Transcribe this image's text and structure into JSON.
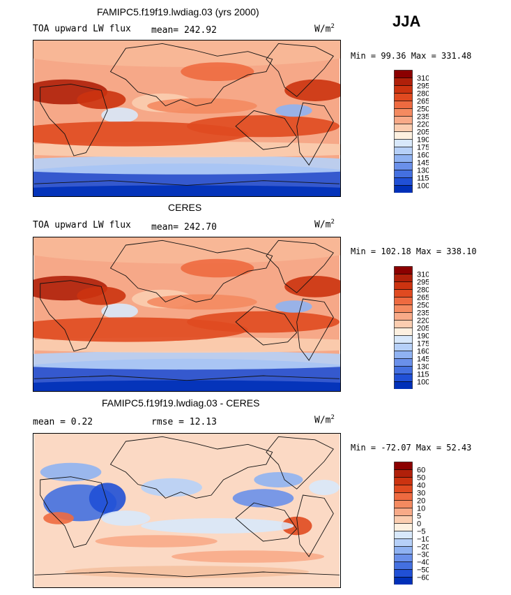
{
  "header": {
    "season": "JJA"
  },
  "panels": [
    {
      "title": "FAMIPC5.f19f19.lwdiag.03 (yrs 2000)",
      "left_label": "TOA upward LW flux",
      "mid_label": "mean= 242.92",
      "units": "W/m",
      "units_sup": "2",
      "minmax": "Min =  99.36 Max = 331.48",
      "scale": "flux"
    },
    {
      "title": "CERES",
      "left_label": "TOA upward LW flux",
      "mid_label": "mean= 242.70",
      "units": "W/m",
      "units_sup": "2",
      "minmax": "Min = 102.18 Max = 338.10",
      "scale": "flux"
    },
    {
      "title": "FAMIPC5.f19f19.lwdiag.03 - CERES",
      "left_label": "mean =   0.22",
      "mid_label": "rmse =  12.13",
      "units": "W/m",
      "units_sup": "2",
      "minmax": "Min = -72.07 Max =  52.43",
      "scale": "diff"
    }
  ],
  "colorbars": {
    "flux": {
      "labels": [
        "310",
        "295",
        "280",
        "265",
        "250",
        "235",
        "220",
        "205",
        "190",
        "175",
        "160",
        "145",
        "130",
        "115",
        "100"
      ],
      "colors": [
        "#8b0000",
        "#b0200a",
        "#cc3310",
        "#e04a20",
        "#ee6a40",
        "#f48a60",
        "#f8aa88",
        "#fbcdb0",
        "#fdf0e0",
        "#d8e8fb",
        "#b6d0f8",
        "#8fb2f2",
        "#6a90ea",
        "#4470e0",
        "#2050d6",
        "#0030b8"
      ]
    },
    "diff": {
      "labels": [
        "60",
        "50",
        "40",
        "30",
        "20",
        "10",
        "5",
        "0",
        "−5",
        "−10",
        "−20",
        "−30",
        "−40",
        "−50",
        "−60"
      ],
      "colors": [
        "#8b0000",
        "#b0200a",
        "#cc3310",
        "#e04a20",
        "#ee6a40",
        "#f48a60",
        "#f8aa88",
        "#fbcdb0",
        "#fdf0e0",
        "#d8e8fb",
        "#b6d0f8",
        "#8fb2f2",
        "#6a90ea",
        "#4470e0",
        "#2050d6",
        "#0030b8"
      ]
    }
  }
}
